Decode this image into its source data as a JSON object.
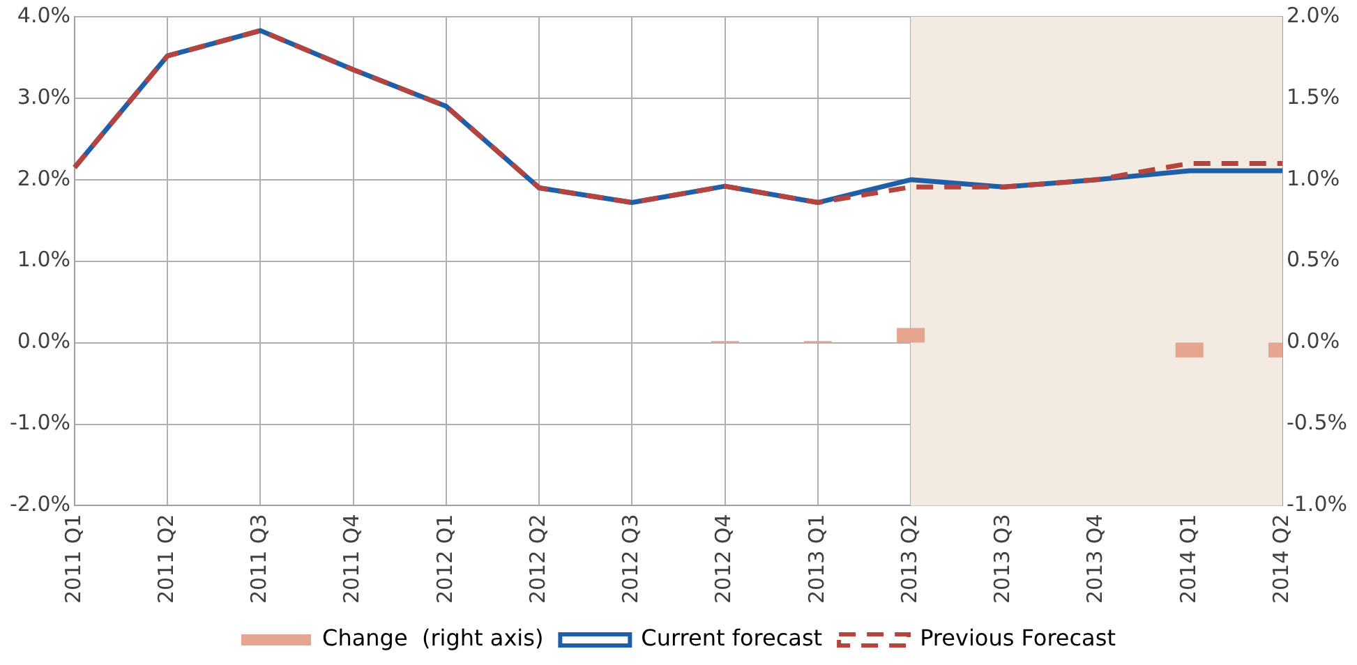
{
  "chart_data": {
    "type": "line",
    "categories": [
      "2011 Q1",
      "2011 Q2",
      "2011 Q3",
      "2011 Q4",
      "2012 Q1",
      "2012 Q2",
      "2012 Q3",
      "2012 Q4",
      "2013 Q1",
      "2013 Q2",
      "2013 Q3",
      "2013 Q4",
      "2014 Q1",
      "2014 Q2"
    ],
    "series": [
      {
        "name": "Change  (right axis)",
        "type": "bar",
        "axis": "y2",
        "color": "#e6a58f",
        "values": [
          null,
          null,
          null,
          null,
          null,
          null,
          null,
          0.01,
          0.01,
          0.09,
          null,
          null,
          -0.09,
          -0.09
        ]
      },
      {
        "name": "Current forecast",
        "color": "#1f5fa8",
        "line_style": "solid",
        "values": [
          2.15,
          3.52,
          3.83,
          3.35,
          2.9,
          1.9,
          1.72,
          1.92,
          1.72,
          2.0,
          1.91,
          2.0,
          2.11,
          2.11
        ]
      },
      {
        "name": "Previous Forecast",
        "color": "#b5443e",
        "line_style": "dashed",
        "values": [
          2.15,
          3.52,
          3.83,
          3.35,
          2.9,
          1.9,
          1.72,
          1.92,
          1.72,
          1.91,
          1.91,
          2.0,
          2.2,
          2.2
        ]
      }
    ],
    "ylim": [
      -2,
      4
    ],
    "yticks": [
      {
        "value": -2,
        "label": "-2.0%"
      },
      {
        "value": -1,
        "label": "-1.0%"
      },
      {
        "value": 0,
        "label": "0.0%"
      },
      {
        "value": 1,
        "label": "1.0%"
      },
      {
        "value": 2,
        "label": "2.0%"
      },
      {
        "value": 3,
        "label": "3.0%"
      },
      {
        "value": 4,
        "label": "4.0%"
      }
    ],
    "y2lim": [
      -1,
      2
    ],
    "y2ticks": [
      {
        "value": -1,
        "label": "-1.0%"
      },
      {
        "value": -0.5,
        "label": "-0.5%"
      },
      {
        "value": 0,
        "label": "0.0%"
      },
      {
        "value": 0.5,
        "label": "0.5%"
      },
      {
        "value": 1,
        "label": "1.0%"
      },
      {
        "value": 1.5,
        "label": "1.5%"
      },
      {
        "value": 2,
        "label": "2.0%"
      }
    ],
    "bands": [
      {
        "axis": "x",
        "from": "2013 Q2",
        "to": "2014 Q2",
        "color": "#f3ebe1"
      }
    ],
    "grid": true,
    "legend": "bottom",
    "marker": "none"
  }
}
